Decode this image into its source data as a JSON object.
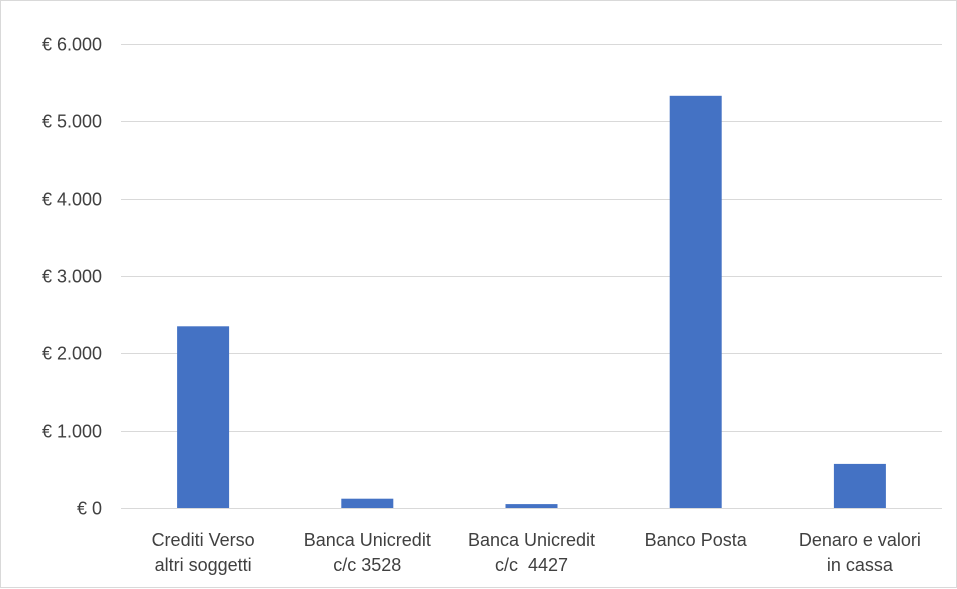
{
  "chart_data": {
    "type": "bar",
    "title": "",
    "xlabel": "",
    "ylabel": "",
    "categories": [
      [
        "Crediti Verso",
        "altri soggetti"
      ],
      [
        "Banca Unicredit",
        "c/c 3528"
      ],
      [
        "Banca Unicredit",
        "c/c  4427"
      ],
      [
        "Banco Posta"
      ],
      [
        "Denaro e valori",
        "in cassa"
      ]
    ],
    "series": [
      {
        "color": "#4472c4",
        "values": [
          2350,
          120,
          50,
          5330,
          570
        ]
      }
    ],
    "ylim": [
      0,
      6000
    ],
    "yticks": [
      {
        "value": 0,
        "label": "€ 0"
      },
      {
        "value": 1000,
        "label": "€ 1.000"
      },
      {
        "value": 2000,
        "label": "€ 2.000"
      },
      {
        "value": 3000,
        "label": "€ 3.000"
      },
      {
        "value": 4000,
        "label": "€ 4.000"
      },
      {
        "value": 5000,
        "label": "€ 5.000"
      },
      {
        "value": 6000,
        "label": "€ 6.000"
      }
    ],
    "grid": true,
    "legend": "none",
    "colors": {
      "bar": "#4472c4",
      "grid": "#d9d9d9",
      "text": "#404040",
      "border": "#d9d9d9"
    }
  }
}
